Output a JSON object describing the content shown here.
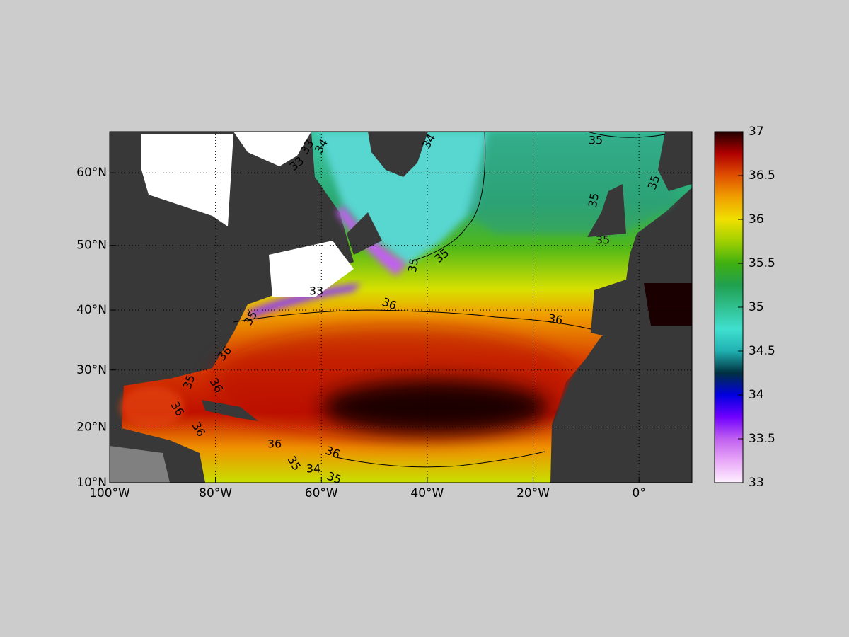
{
  "map": {
    "xlim": [
      -100,
      10
    ],
    "ylim": [
      10,
      65
    ],
    "xticks": [
      {
        "value": -100,
        "label": "100°W"
      },
      {
        "value": -80,
        "label": "80°W"
      },
      {
        "value": -60,
        "label": "60°W"
      },
      {
        "value": -40,
        "label": "40°W"
      },
      {
        "value": -20,
        "label": "20°W"
      },
      {
        "value": 0,
        "label": "0°"
      }
    ],
    "yticks": [
      {
        "value": 10,
        "label": "10°N"
      },
      {
        "value": 20,
        "label": "20°N"
      },
      {
        "value": 30,
        "label": "30°N"
      },
      {
        "value": 40,
        "label": "40°N"
      },
      {
        "value": 50,
        "label": "50°N"
      },
      {
        "value": 60,
        "label": "60°N"
      }
    ],
    "grid": true,
    "colorbar": {
      "lim": [
        33,
        37
      ],
      "ticks": [
        33,
        33.5,
        34,
        34.5,
        35,
        35.5,
        36,
        36.5,
        37
      ],
      "colors": [
        "#fff0ff",
        "#e8a8f8",
        "#c060f0",
        "#7000ff",
        "#0000e0",
        "#003040",
        "#20b0b0",
        "#40e0d0",
        "#30c090",
        "#20a050",
        "#40b010",
        "#a0d000",
        "#f0e000",
        "#f0a000",
        "#e05000",
        "#b00000",
        "#200000"
      ]
    },
    "contour_labels": [
      "33",
      "34",
      "33",
      "34",
      "35",
      "35",
      "35",
      "35",
      "35",
      "35",
      "33",
      "36",
      "36",
      "35",
      "36",
      "36",
      "35",
      "36",
      "36",
      "36",
      "36",
      "35",
      "34",
      "35"
    ]
  }
}
